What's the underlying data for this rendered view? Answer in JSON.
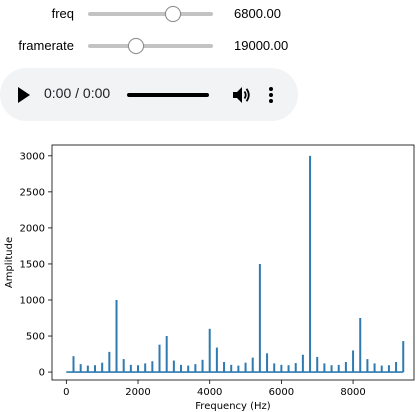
{
  "controls": {
    "freq": {
      "label": "freq",
      "value_text": "6800.00",
      "value": 6800,
      "min": 0,
      "max": 10000
    },
    "framerate": {
      "label": "framerate",
      "value_text": "19000.00",
      "value": 19000,
      "min": 0,
      "max": 50000
    }
  },
  "audio": {
    "time_text": "0:00 / 0:00",
    "progress": 0
  },
  "chart_data": {
    "type": "bar",
    "xlabel": "Frequency (Hz)",
    "ylabel": "Amplitude",
    "xlim": [
      -400,
      9700
    ],
    "ylim": [
      -110,
      3150
    ],
    "xticks": [
      0,
      2000,
      4000,
      6000,
      8000
    ],
    "yticks": [
      0,
      500,
      1000,
      1500,
      2000,
      2500,
      3000
    ],
    "color": "#2f7ab0",
    "x": [
      200,
      400,
      600,
      800,
      1000,
      1200,
      1400,
      1600,
      1800,
      2000,
      2200,
      2400,
      2600,
      2800,
      3000,
      3200,
      3400,
      3600,
      3800,
      4000,
      4200,
      4400,
      4600,
      4800,
      5000,
      5200,
      5400,
      5600,
      5800,
      6000,
      6200,
      6400,
      6600,
      6800,
      7000,
      7200,
      7400,
      7600,
      7800,
      8000,
      8200,
      8400,
      8600,
      8800,
      9000,
      9200,
      9400
    ],
    "values": [
      220,
      110,
      90,
      95,
      130,
      280,
      1000,
      180,
      100,
      95,
      120,
      150,
      380,
      500,
      160,
      100,
      90,
      110,
      170,
      600,
      340,
      140,
      100,
      90,
      130,
      200,
      1500,
      260,
      120,
      100,
      95,
      125,
      240,
      3000,
      210,
      120,
      95,
      100,
      140,
      300,
      750,
      180,
      120,
      90,
      95,
      140,
      430
    ]
  }
}
